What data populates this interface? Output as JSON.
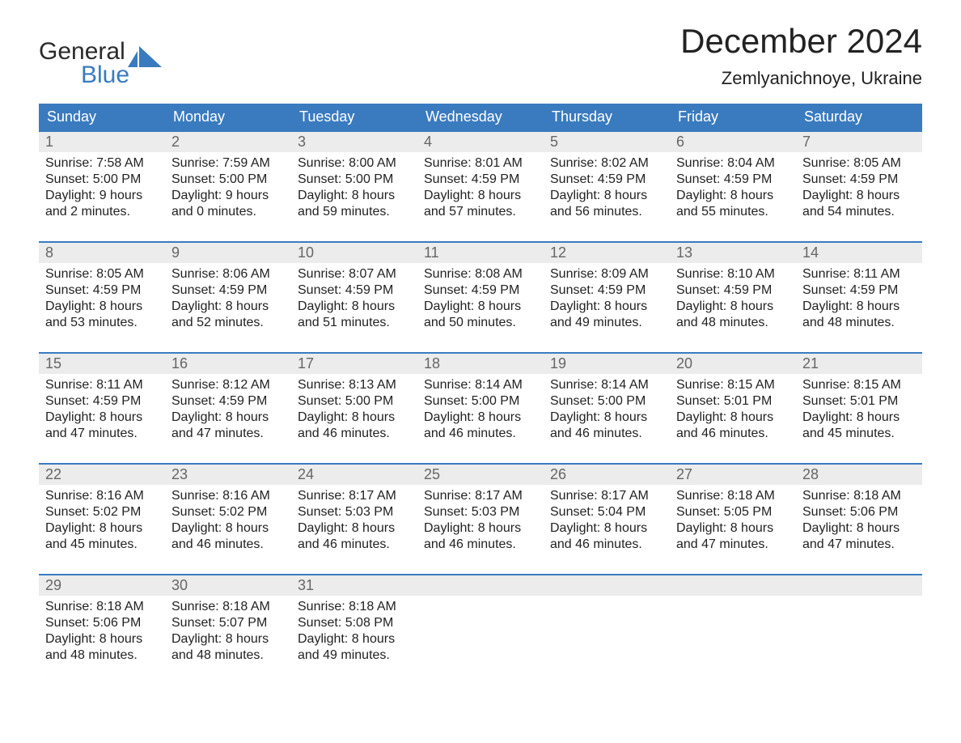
{
  "logo": {
    "line1": "General",
    "line2": "Blue"
  },
  "title": "December 2024",
  "location": "Zemlyanichnoye, Ukraine",
  "colors": {
    "header_bg": "#3a7bbf",
    "row_divider": "#3a7bbf",
    "daynum_bg": "#ececec",
    "logo_blue": "#3a7bbf",
    "logo_dark": "#2a2a2a",
    "text": "#222222",
    "background": "#ffffff"
  },
  "layout": {
    "columns": 7,
    "fonts": {
      "title_pt": 42,
      "location_pt": 22,
      "dayheader_pt": 18,
      "body_pt": 16
    }
  },
  "day_names": [
    "Sunday",
    "Monday",
    "Tuesday",
    "Wednesday",
    "Thursday",
    "Friday",
    "Saturday"
  ],
  "weeks": [
    [
      {
        "num": "1",
        "sunrise": "7:58 AM",
        "sunset": "5:00 PM",
        "daylight1": "Daylight: 9 hours",
        "daylight2": "and 2 minutes."
      },
      {
        "num": "2",
        "sunrise": "7:59 AM",
        "sunset": "5:00 PM",
        "daylight1": "Daylight: 9 hours",
        "daylight2": "and 0 minutes."
      },
      {
        "num": "3",
        "sunrise": "8:00 AM",
        "sunset": "5:00 PM",
        "daylight1": "Daylight: 8 hours",
        "daylight2": "and 59 minutes."
      },
      {
        "num": "4",
        "sunrise": "8:01 AM",
        "sunset": "4:59 PM",
        "daylight1": "Daylight: 8 hours",
        "daylight2": "and 57 minutes."
      },
      {
        "num": "5",
        "sunrise": "8:02 AM",
        "sunset": "4:59 PM",
        "daylight1": "Daylight: 8 hours",
        "daylight2": "and 56 minutes."
      },
      {
        "num": "6",
        "sunrise": "8:04 AM",
        "sunset": "4:59 PM",
        "daylight1": "Daylight: 8 hours",
        "daylight2": "and 55 minutes."
      },
      {
        "num": "7",
        "sunrise": "8:05 AM",
        "sunset": "4:59 PM",
        "daylight1": "Daylight: 8 hours",
        "daylight2": "and 54 minutes."
      }
    ],
    [
      {
        "num": "8",
        "sunrise": "8:05 AM",
        "sunset": "4:59 PM",
        "daylight1": "Daylight: 8 hours",
        "daylight2": "and 53 minutes."
      },
      {
        "num": "9",
        "sunrise": "8:06 AM",
        "sunset": "4:59 PM",
        "daylight1": "Daylight: 8 hours",
        "daylight2": "and 52 minutes."
      },
      {
        "num": "10",
        "sunrise": "8:07 AM",
        "sunset": "4:59 PM",
        "daylight1": "Daylight: 8 hours",
        "daylight2": "and 51 minutes."
      },
      {
        "num": "11",
        "sunrise": "8:08 AM",
        "sunset": "4:59 PM",
        "daylight1": "Daylight: 8 hours",
        "daylight2": "and 50 minutes."
      },
      {
        "num": "12",
        "sunrise": "8:09 AM",
        "sunset": "4:59 PM",
        "daylight1": "Daylight: 8 hours",
        "daylight2": "and 49 minutes."
      },
      {
        "num": "13",
        "sunrise": "8:10 AM",
        "sunset": "4:59 PM",
        "daylight1": "Daylight: 8 hours",
        "daylight2": "and 48 minutes."
      },
      {
        "num": "14",
        "sunrise": "8:11 AM",
        "sunset": "4:59 PM",
        "daylight1": "Daylight: 8 hours",
        "daylight2": "and 48 minutes."
      }
    ],
    [
      {
        "num": "15",
        "sunrise": "8:11 AM",
        "sunset": "4:59 PM",
        "daylight1": "Daylight: 8 hours",
        "daylight2": "and 47 minutes."
      },
      {
        "num": "16",
        "sunrise": "8:12 AM",
        "sunset": "4:59 PM",
        "daylight1": "Daylight: 8 hours",
        "daylight2": "and 47 minutes."
      },
      {
        "num": "17",
        "sunrise": "8:13 AM",
        "sunset": "5:00 PM",
        "daylight1": "Daylight: 8 hours",
        "daylight2": "and 46 minutes."
      },
      {
        "num": "18",
        "sunrise": "8:14 AM",
        "sunset": "5:00 PM",
        "daylight1": "Daylight: 8 hours",
        "daylight2": "and 46 minutes."
      },
      {
        "num": "19",
        "sunrise": "8:14 AM",
        "sunset": "5:00 PM",
        "daylight1": "Daylight: 8 hours",
        "daylight2": "and 46 minutes."
      },
      {
        "num": "20",
        "sunrise": "8:15 AM",
        "sunset": "5:01 PM",
        "daylight1": "Daylight: 8 hours",
        "daylight2": "and 46 minutes."
      },
      {
        "num": "21",
        "sunrise": "8:15 AM",
        "sunset": "5:01 PM",
        "daylight1": "Daylight: 8 hours",
        "daylight2": "and 45 minutes."
      }
    ],
    [
      {
        "num": "22",
        "sunrise": "8:16 AM",
        "sunset": "5:02 PM",
        "daylight1": "Daylight: 8 hours",
        "daylight2": "and 45 minutes."
      },
      {
        "num": "23",
        "sunrise": "8:16 AM",
        "sunset": "5:02 PM",
        "daylight1": "Daylight: 8 hours",
        "daylight2": "and 46 minutes."
      },
      {
        "num": "24",
        "sunrise": "8:17 AM",
        "sunset": "5:03 PM",
        "daylight1": "Daylight: 8 hours",
        "daylight2": "and 46 minutes."
      },
      {
        "num": "25",
        "sunrise": "8:17 AM",
        "sunset": "5:03 PM",
        "daylight1": "Daylight: 8 hours",
        "daylight2": "and 46 minutes."
      },
      {
        "num": "26",
        "sunrise": "8:17 AM",
        "sunset": "5:04 PM",
        "daylight1": "Daylight: 8 hours",
        "daylight2": "and 46 minutes."
      },
      {
        "num": "27",
        "sunrise": "8:18 AM",
        "sunset": "5:05 PM",
        "daylight1": "Daylight: 8 hours",
        "daylight2": "and 47 minutes."
      },
      {
        "num": "28",
        "sunrise": "8:18 AM",
        "sunset": "5:06 PM",
        "daylight1": "Daylight: 8 hours",
        "daylight2": "and 47 minutes."
      }
    ],
    [
      {
        "num": "29",
        "sunrise": "8:18 AM",
        "sunset": "5:06 PM",
        "daylight1": "Daylight: 8 hours",
        "daylight2": "and 48 minutes."
      },
      {
        "num": "30",
        "sunrise": "8:18 AM",
        "sunset": "5:07 PM",
        "daylight1": "Daylight: 8 hours",
        "daylight2": "and 48 minutes."
      },
      {
        "num": "31",
        "sunrise": "8:18 AM",
        "sunset": "5:08 PM",
        "daylight1": "Daylight: 8 hours",
        "daylight2": "and 49 minutes."
      },
      null,
      null,
      null,
      null
    ]
  ]
}
